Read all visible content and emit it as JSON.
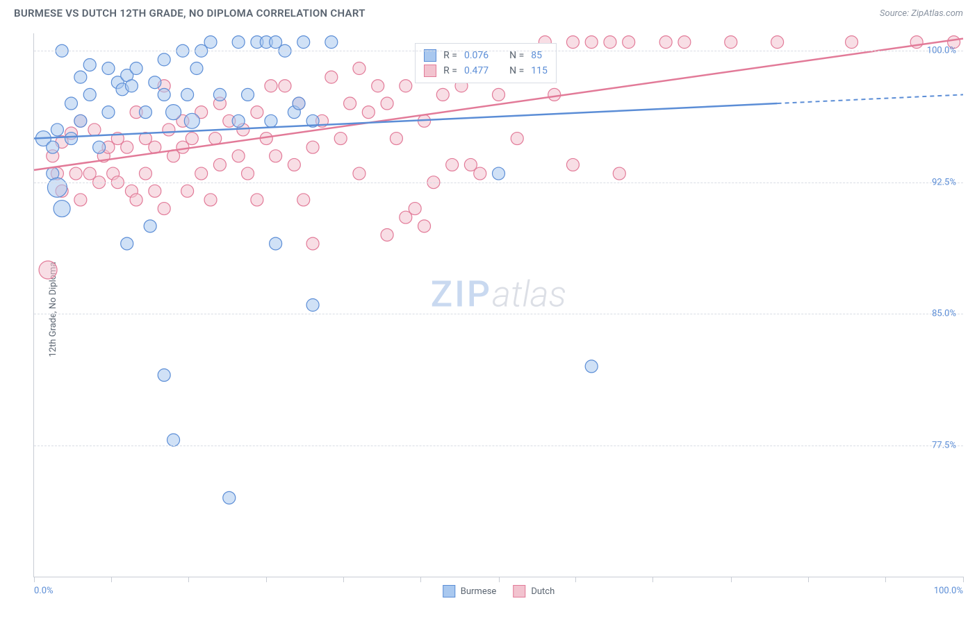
{
  "header": {
    "title": "BURMESE VS DUTCH 12TH GRADE, NO DIPLOMA CORRELATION CHART",
    "source": "Source: ZipAtlas.com"
  },
  "chart": {
    "type": "scatter",
    "y_axis_label": "12th Grade, No Diploma",
    "xlim": [
      0,
      100
    ],
    "ylim": [
      70,
      101
    ],
    "x_tick_min_label": "0.0%",
    "x_tick_max_label": "100.0%",
    "x_ticks_pct": [
      0,
      8.3,
      16.6,
      25,
      33.3,
      41.6,
      50,
      58.3,
      66.6,
      75,
      83.3,
      91.6,
      100
    ],
    "y_ticks": [
      {
        "value": 77.5,
        "label": "77.5%"
      },
      {
        "value": 85.0,
        "label": "85.0%"
      },
      {
        "value": 92.5,
        "label": "92.5%"
      },
      {
        "value": 100.0,
        "label": "100.0%"
      }
    ],
    "background_color": "#ffffff",
    "grid_color": "#d8dce4",
    "axis_color": "#c8ccd4",
    "marker_radius": 9,
    "marker_opacity": 0.55,
    "series": {
      "burmese": {
        "label": "Burmese",
        "fill": "#a9c8ef",
        "stroke": "#5b8dd6",
        "R_label": "R =",
        "R_value": "0.076",
        "N_label": "N =",
        "N_value": "85",
        "trend": {
          "y_at_x0": 95.0,
          "y_at_x100": 97.5,
          "solid_until_x": 80
        },
        "points": [
          {
            "x": 1,
            "y": 95,
            "r": 11
          },
          {
            "x": 2,
            "y": 94.5,
            "r": 9
          },
          {
            "x": 2,
            "y": 93,
            "r": 9
          },
          {
            "x": 2.5,
            "y": 92.2,
            "r": 14
          },
          {
            "x": 2.5,
            "y": 95.5,
            "r": 9
          },
          {
            "x": 3,
            "y": 100,
            "r": 9
          },
          {
            "x": 3,
            "y": 91,
            "r": 12
          },
          {
            "x": 4,
            "y": 95,
            "r": 9
          },
          {
            "x": 4,
            "y": 97,
            "r": 9
          },
          {
            "x": 5,
            "y": 98.5,
            "r": 9
          },
          {
            "x": 5,
            "y": 96,
            "r": 9
          },
          {
            "x": 6,
            "y": 99.2,
            "r": 9
          },
          {
            "x": 6,
            "y": 97.5,
            "r": 9
          },
          {
            "x": 7,
            "y": 94.5,
            "r": 9
          },
          {
            "x": 8,
            "y": 96.5,
            "r": 9
          },
          {
            "x": 8,
            "y": 99,
            "r": 9
          },
          {
            "x": 9,
            "y": 98.2,
            "r": 9
          },
          {
            "x": 9.5,
            "y": 97.8,
            "r": 9
          },
          {
            "x": 10,
            "y": 98.6,
            "r": 9
          },
          {
            "x": 10,
            "y": 89,
            "r": 9
          },
          {
            "x": 10.5,
            "y": 98,
            "r": 9
          },
          {
            "x": 11,
            "y": 99,
            "r": 9
          },
          {
            "x": 12,
            "y": 96.5,
            "r": 9
          },
          {
            "x": 12.5,
            "y": 90,
            "r": 9
          },
          {
            "x": 13,
            "y": 98.2,
            "r": 9
          },
          {
            "x": 14,
            "y": 99.5,
            "r": 9
          },
          {
            "x": 14,
            "y": 97.5,
            "r": 9
          },
          {
            "x": 14,
            "y": 81.5,
            "r": 9
          },
          {
            "x": 15,
            "y": 96.5,
            "r": 11
          },
          {
            "x": 15,
            "y": 77.8,
            "r": 9
          },
          {
            "x": 16,
            "y": 100,
            "r": 9
          },
          {
            "x": 16.5,
            "y": 97.5,
            "r": 9
          },
          {
            "x": 17,
            "y": 96,
            "r": 11
          },
          {
            "x": 17.5,
            "y": 99,
            "r": 9
          },
          {
            "x": 18,
            "y": 100,
            "r": 9
          },
          {
            "x": 19,
            "y": 100.5,
            "r": 9
          },
          {
            "x": 20,
            "y": 97.5,
            "r": 9
          },
          {
            "x": 21,
            "y": 74.5,
            "r": 9
          },
          {
            "x": 22,
            "y": 100.5,
            "r": 9
          },
          {
            "x": 22,
            "y": 96,
            "r": 9
          },
          {
            "x": 23,
            "y": 97.5,
            "r": 9
          },
          {
            "x": 24,
            "y": 100.5,
            "r": 9
          },
          {
            "x": 25,
            "y": 100.5,
            "r": 9
          },
          {
            "x": 25.5,
            "y": 96,
            "r": 9
          },
          {
            "x": 26,
            "y": 89,
            "r": 9
          },
          {
            "x": 26,
            "y": 100.5,
            "r": 9
          },
          {
            "x": 27,
            "y": 100,
            "r": 9
          },
          {
            "x": 28,
            "y": 96.5,
            "r": 9
          },
          {
            "x": 28.5,
            "y": 97,
            "r": 9
          },
          {
            "x": 29,
            "y": 100.5,
            "r": 9
          },
          {
            "x": 30,
            "y": 85.5,
            "r": 9
          },
          {
            "x": 30,
            "y": 96,
            "r": 9
          },
          {
            "x": 32,
            "y": 100.5,
            "r": 9
          },
          {
            "x": 50,
            "y": 93,
            "r": 9
          },
          {
            "x": 60,
            "y": 82,
            "r": 9
          }
        ]
      },
      "dutch": {
        "label": "Dutch",
        "fill": "#f2c3cf",
        "stroke": "#e27a98",
        "R_label": "R =",
        "R_value": "0.477",
        "N_label": "N =",
        "N_value": "115",
        "trend": {
          "y_at_x0": 93.2,
          "y_at_x100": 100.7,
          "solid_until_x": 100
        },
        "points": [
          {
            "x": 1.5,
            "y": 87.5,
            "r": 13
          },
          {
            "x": 2,
            "y": 94,
            "r": 9
          },
          {
            "x": 2.5,
            "y": 93,
            "r": 9
          },
          {
            "x": 3,
            "y": 92,
            "r": 9
          },
          {
            "x": 3,
            "y": 94.8,
            "r": 9
          },
          {
            "x": 4,
            "y": 95.3,
            "r": 9
          },
          {
            "x": 4.5,
            "y": 93,
            "r": 9
          },
          {
            "x": 5,
            "y": 96,
            "r": 9
          },
          {
            "x": 5,
            "y": 91.5,
            "r": 9
          },
          {
            "x": 6,
            "y": 93,
            "r": 9
          },
          {
            "x": 6.5,
            "y": 95.5,
            "r": 9
          },
          {
            "x": 7,
            "y": 92.5,
            "r": 9
          },
          {
            "x": 7.5,
            "y": 94,
            "r": 9
          },
          {
            "x": 8,
            "y": 94.5,
            "r": 9
          },
          {
            "x": 8.5,
            "y": 93,
            "r": 9
          },
          {
            "x": 9,
            "y": 92.5,
            "r": 9
          },
          {
            "x": 9,
            "y": 95,
            "r": 9
          },
          {
            "x": 10,
            "y": 94.5,
            "r": 9
          },
          {
            "x": 10.5,
            "y": 92,
            "r": 9
          },
          {
            "x": 11,
            "y": 96.5,
            "r": 9
          },
          {
            "x": 11,
            "y": 91.5,
            "r": 9
          },
          {
            "x": 12,
            "y": 95,
            "r": 9
          },
          {
            "x": 12,
            "y": 93,
            "r": 9
          },
          {
            "x": 13,
            "y": 94.5,
            "r": 9
          },
          {
            "x": 13,
            "y": 92,
            "r": 9
          },
          {
            "x": 14,
            "y": 98,
            "r": 9
          },
          {
            "x": 14,
            "y": 91,
            "r": 9
          },
          {
            "x": 14.5,
            "y": 95.5,
            "r": 9
          },
          {
            "x": 15,
            "y": 94,
            "r": 9
          },
          {
            "x": 16,
            "y": 96,
            "r": 9
          },
          {
            "x": 16,
            "y": 94.5,
            "r": 9
          },
          {
            "x": 16.5,
            "y": 92,
            "r": 9
          },
          {
            "x": 17,
            "y": 95,
            "r": 9
          },
          {
            "x": 18,
            "y": 93,
            "r": 9
          },
          {
            "x": 18,
            "y": 96.5,
            "r": 9
          },
          {
            "x": 19,
            "y": 91.5,
            "r": 9
          },
          {
            "x": 19.5,
            "y": 95,
            "r": 9
          },
          {
            "x": 20,
            "y": 97,
            "r": 9
          },
          {
            "x": 20,
            "y": 93.5,
            "r": 9
          },
          {
            "x": 21,
            "y": 96,
            "r": 9
          },
          {
            "x": 22,
            "y": 94,
            "r": 9
          },
          {
            "x": 22.5,
            "y": 95.5,
            "r": 9
          },
          {
            "x": 23,
            "y": 93,
            "r": 9
          },
          {
            "x": 24,
            "y": 96.5,
            "r": 9
          },
          {
            "x": 24,
            "y": 91.5,
            "r": 9
          },
          {
            "x": 25,
            "y": 95,
            "r": 9
          },
          {
            "x": 25.5,
            "y": 98,
            "r": 9
          },
          {
            "x": 26,
            "y": 94,
            "r": 9
          },
          {
            "x": 27,
            "y": 98,
            "r": 9
          },
          {
            "x": 28,
            "y": 93.5,
            "r": 9
          },
          {
            "x": 28.5,
            "y": 97,
            "r": 9
          },
          {
            "x": 29,
            "y": 91.5,
            "r": 9
          },
          {
            "x": 30,
            "y": 94.5,
            "r": 9
          },
          {
            "x": 30,
            "y": 89,
            "r": 9
          },
          {
            "x": 31,
            "y": 96,
            "r": 9
          },
          {
            "x": 32,
            "y": 98.5,
            "r": 9
          },
          {
            "x": 33,
            "y": 95,
            "r": 9
          },
          {
            "x": 34,
            "y": 97,
            "r": 9
          },
          {
            "x": 35,
            "y": 99,
            "r": 9
          },
          {
            "x": 35,
            "y": 93,
            "r": 9
          },
          {
            "x": 36,
            "y": 96.5,
            "r": 9
          },
          {
            "x": 37,
            "y": 98,
            "r": 9
          },
          {
            "x": 38,
            "y": 97,
            "r": 9
          },
          {
            "x": 38,
            "y": 89.5,
            "r": 9
          },
          {
            "x": 39,
            "y": 95,
            "r": 9
          },
          {
            "x": 40,
            "y": 90.5,
            "r": 9
          },
          {
            "x": 40,
            "y": 98,
            "r": 9
          },
          {
            "x": 41,
            "y": 91,
            "r": 9
          },
          {
            "x": 42,
            "y": 96,
            "r": 9
          },
          {
            "x": 42,
            "y": 90,
            "r": 9
          },
          {
            "x": 43,
            "y": 92.5,
            "r": 9
          },
          {
            "x": 44,
            "y": 97.5,
            "r": 9
          },
          {
            "x": 45,
            "y": 93.5,
            "r": 9
          },
          {
            "x": 46,
            "y": 98,
            "r": 9
          },
          {
            "x": 47,
            "y": 93.5,
            "r": 9
          },
          {
            "x": 48,
            "y": 93,
            "r": 9
          },
          {
            "x": 50,
            "y": 97.5,
            "r": 9
          },
          {
            "x": 52,
            "y": 95,
            "r": 9
          },
          {
            "x": 52,
            "y": 100,
            "r": 9
          },
          {
            "x": 55,
            "y": 100.5,
            "r": 9
          },
          {
            "x": 56,
            "y": 97.5,
            "r": 9
          },
          {
            "x": 58,
            "y": 100.5,
            "r": 9
          },
          {
            "x": 58,
            "y": 93.5,
            "r": 9
          },
          {
            "x": 60,
            "y": 100.5,
            "r": 9
          },
          {
            "x": 62,
            "y": 100.5,
            "r": 9
          },
          {
            "x": 63,
            "y": 93,
            "r": 9
          },
          {
            "x": 64,
            "y": 100.5,
            "r": 9
          },
          {
            "x": 68,
            "y": 100.5,
            "r": 9
          },
          {
            "x": 70,
            "y": 100.5,
            "r": 9
          },
          {
            "x": 75,
            "y": 100.5,
            "r": 9
          },
          {
            "x": 80,
            "y": 100.5,
            "r": 9
          },
          {
            "x": 88,
            "y": 100.5,
            "r": 9
          },
          {
            "x": 95,
            "y": 100.5,
            "r": 9
          },
          {
            "x": 99,
            "y": 100.5,
            "r": 9
          }
        ]
      }
    }
  },
  "watermark": {
    "part1": "ZIP",
    "part2": "atlas"
  },
  "legend": {
    "item1": "Burmese",
    "item2": "Dutch"
  }
}
